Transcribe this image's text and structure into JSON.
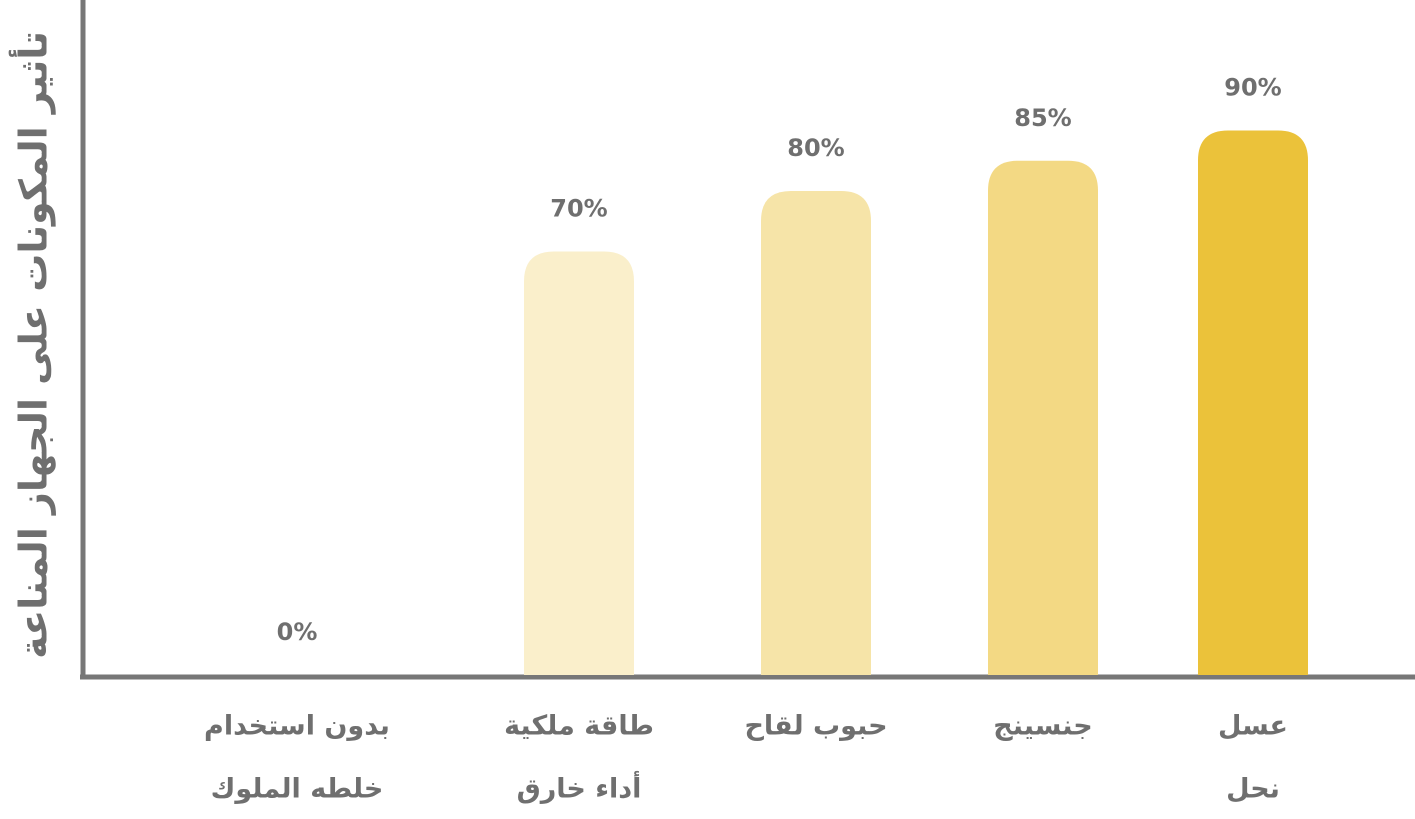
{
  "chart_data": {
    "type": "bar",
    "y_label": "تأثير المكونات على الجهاز المناعة",
    "categories": [
      [
        "بدون استخدام",
        "خلطه الملوك"
      ],
      [
        "طاقة ملكية",
        "أداء خارق"
      ],
      [
        "حبوب لقاح"
      ],
      [
        "جنسينج"
      ],
      [
        "عسل",
        "نحل"
      ]
    ],
    "values": [
      0,
      70,
      80,
      85,
      90
    ],
    "value_labels": [
      "0%",
      "70%",
      "80%",
      "85%",
      "90%"
    ],
    "colors": [
      "#faefcb",
      "#faefcb",
      "#f6e4a8",
      "#f3d984",
      "#ebc23a"
    ],
    "ylim": [
      0,
      100
    ]
  }
}
